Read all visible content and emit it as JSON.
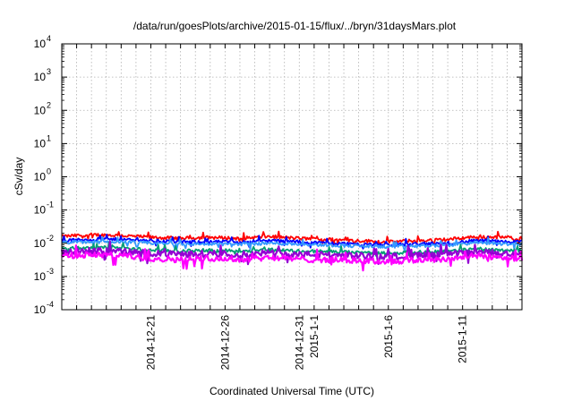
{
  "chart_data": {
    "type": "line",
    "title": "/data/run/goesPlots/archive/2015-01-15/flux/../bryn/31daysMars.plot",
    "xlabel": "Coordinated Universal Time (UTC)",
    "ylabel": "cSv/day",
    "y_scale": "log",
    "ylim": [
      0.0001,
      10000
    ],
    "y_ticks": [
      {
        "base": "10",
        "exp": "-4"
      },
      {
        "base": "10",
        "exp": "-3"
      },
      {
        "base": "10",
        "exp": "-2"
      },
      {
        "base": "10",
        "exp": "-1"
      },
      {
        "base": "10",
        "exp": "0"
      },
      {
        "base": "10",
        "exp": "1"
      },
      {
        "base": "10",
        "exp": "2"
      },
      {
        "base": "10",
        "exp": "3"
      },
      {
        "base": "10",
        "exp": "4"
      }
    ],
    "xlim": [
      "2014-12-15",
      "2015-01-15"
    ],
    "x_ticks": [
      {
        "date": "2014-12-21",
        "label": "2014-12-21"
      },
      {
        "date": "2014-12-26",
        "label": "2014-12-26"
      },
      {
        "date": "2014-12-31",
        "label": "2014-12-31"
      },
      {
        "date": "2015-01-01",
        "label": "2015-1-1"
      },
      {
        "date": "2015-01-06",
        "label": "2015-1-6"
      },
      {
        "date": "2015-01-11",
        "label": "2015-1-11"
      }
    ],
    "grid": true,
    "series": [
      {
        "color": "#ff0000",
        "points": [
          [
            "2014-12-15",
            0.016
          ],
          [
            "2014-12-17",
            0.018
          ],
          [
            "2014-12-19",
            0.017
          ],
          [
            "2014-12-21",
            0.015
          ],
          [
            "2014-12-23",
            0.014
          ],
          [
            "2014-12-25",
            0.015
          ],
          [
            "2014-12-27",
            0.014
          ],
          [
            "2014-12-29",
            0.016
          ],
          [
            "2014-12-31",
            0.014
          ],
          [
            "2015-01-02",
            0.013
          ],
          [
            "2015-01-04",
            0.012
          ],
          [
            "2015-01-06",
            0.011
          ],
          [
            "2015-01-08",
            0.012
          ],
          [
            "2015-01-10",
            0.013
          ],
          [
            "2015-01-12",
            0.016
          ],
          [
            "2015-01-14",
            0.015
          ],
          [
            "2015-01-15",
            0.014
          ]
        ]
      },
      {
        "color": "#0000ff",
        "points": [
          [
            "2014-12-15",
            0.012
          ],
          [
            "2014-12-17",
            0.013
          ],
          [
            "2014-12-19",
            0.013
          ],
          [
            "2014-12-21",
            0.012
          ],
          [
            "2014-12-23",
            0.011
          ],
          [
            "2014-12-25",
            0.011
          ],
          [
            "2014-12-27",
            0.011
          ],
          [
            "2014-12-29",
            0.012
          ],
          [
            "2014-12-31",
            0.011
          ],
          [
            "2015-01-02",
            0.01
          ],
          [
            "2015-01-04",
            0.0095
          ],
          [
            "2015-01-06",
            0.009
          ],
          [
            "2015-01-08",
            0.0095
          ],
          [
            "2015-01-10",
            0.01
          ],
          [
            "2015-01-12",
            0.012
          ],
          [
            "2015-01-14",
            0.011
          ],
          [
            "2015-01-15",
            0.011
          ]
        ]
      },
      {
        "color": "#3399ff",
        "points": [
          [
            "2014-12-15",
            0.0105
          ],
          [
            "2014-12-17",
            0.011
          ],
          [
            "2014-12-19",
            0.011
          ],
          [
            "2014-12-21",
            0.01
          ],
          [
            "2014-12-23",
            0.0095
          ],
          [
            "2014-12-25",
            0.0095
          ],
          [
            "2014-12-27",
            0.0095
          ],
          [
            "2014-12-29",
            0.01
          ],
          [
            "2014-12-31",
            0.0095
          ],
          [
            "2015-01-02",
            0.0088
          ],
          [
            "2015-01-04",
            0.0082
          ],
          [
            "2015-01-06",
            0.0078
          ],
          [
            "2015-01-08",
            0.0082
          ],
          [
            "2015-01-10",
            0.0088
          ],
          [
            "2015-01-12",
            0.0105
          ],
          [
            "2015-01-14",
            0.0095
          ],
          [
            "2015-01-15",
            0.0095
          ]
        ]
      },
      {
        "color": "#009e73",
        "points": [
          [
            "2014-12-15",
            0.0068
          ],
          [
            "2014-12-17",
            0.0075
          ],
          [
            "2014-12-19",
            0.0072
          ],
          [
            "2014-12-21",
            0.0062
          ],
          [
            "2014-12-23",
            0.0058
          ],
          [
            "2014-12-25",
            0.0062
          ],
          [
            "2014-12-27",
            0.0058
          ],
          [
            "2014-12-29",
            0.0065
          ],
          [
            "2014-12-31",
            0.0058
          ],
          [
            "2015-01-02",
            0.0056
          ],
          [
            "2015-01-04",
            0.0052
          ],
          [
            "2015-01-06",
            0.005
          ],
          [
            "2015-01-08",
            0.0054
          ],
          [
            "2015-01-10",
            0.0058
          ],
          [
            "2015-01-12",
            0.0068
          ],
          [
            "2015-01-14",
            0.0062
          ],
          [
            "2015-01-15",
            0.006
          ]
        ]
      },
      {
        "color": "#9400d3",
        "points": [
          [
            "2014-12-15",
            0.0055
          ],
          [
            "2014-12-17",
            0.006
          ],
          [
            "2014-12-19",
            0.0058
          ],
          [
            "2014-12-21",
            0.005
          ],
          [
            "2014-12-23",
            0.0046
          ],
          [
            "2014-12-25",
            0.005
          ],
          [
            "2014-12-27",
            0.0046
          ],
          [
            "2014-12-29",
            0.0052
          ],
          [
            "2014-12-31",
            0.0046
          ],
          [
            "2015-01-02",
            0.0045
          ],
          [
            "2015-01-04",
            0.0042
          ],
          [
            "2015-01-06",
            0.004
          ],
          [
            "2015-01-08",
            0.0043
          ],
          [
            "2015-01-10",
            0.0046
          ],
          [
            "2015-01-12",
            0.0055
          ],
          [
            "2015-01-14",
            0.005
          ],
          [
            "2015-01-15",
            0.0048
          ]
        ]
      },
      {
        "color": "#ff00ff",
        "points": [
          [
            "2014-12-15",
            0.0042
          ],
          [
            "2014-12-17",
            0.0045
          ],
          [
            "2014-12-19",
            0.0043
          ],
          [
            "2014-12-21",
            0.0035
          ],
          [
            "2014-12-23",
            0.0032
          ],
          [
            "2014-12-25",
            0.0036
          ],
          [
            "2014-12-27",
            0.0032
          ],
          [
            "2014-12-29",
            0.0038
          ],
          [
            "2014-12-31",
            0.0033
          ],
          [
            "2015-01-02",
            0.0032
          ],
          [
            "2015-01-04",
            0.003
          ],
          [
            "2015-01-06",
            0.0028
          ],
          [
            "2015-01-08",
            0.0031
          ],
          [
            "2015-01-10",
            0.0034
          ],
          [
            "2015-01-12",
            0.0042
          ],
          [
            "2015-01-14",
            0.0037
          ],
          [
            "2015-01-15",
            0.0035
          ]
        ]
      }
    ]
  }
}
